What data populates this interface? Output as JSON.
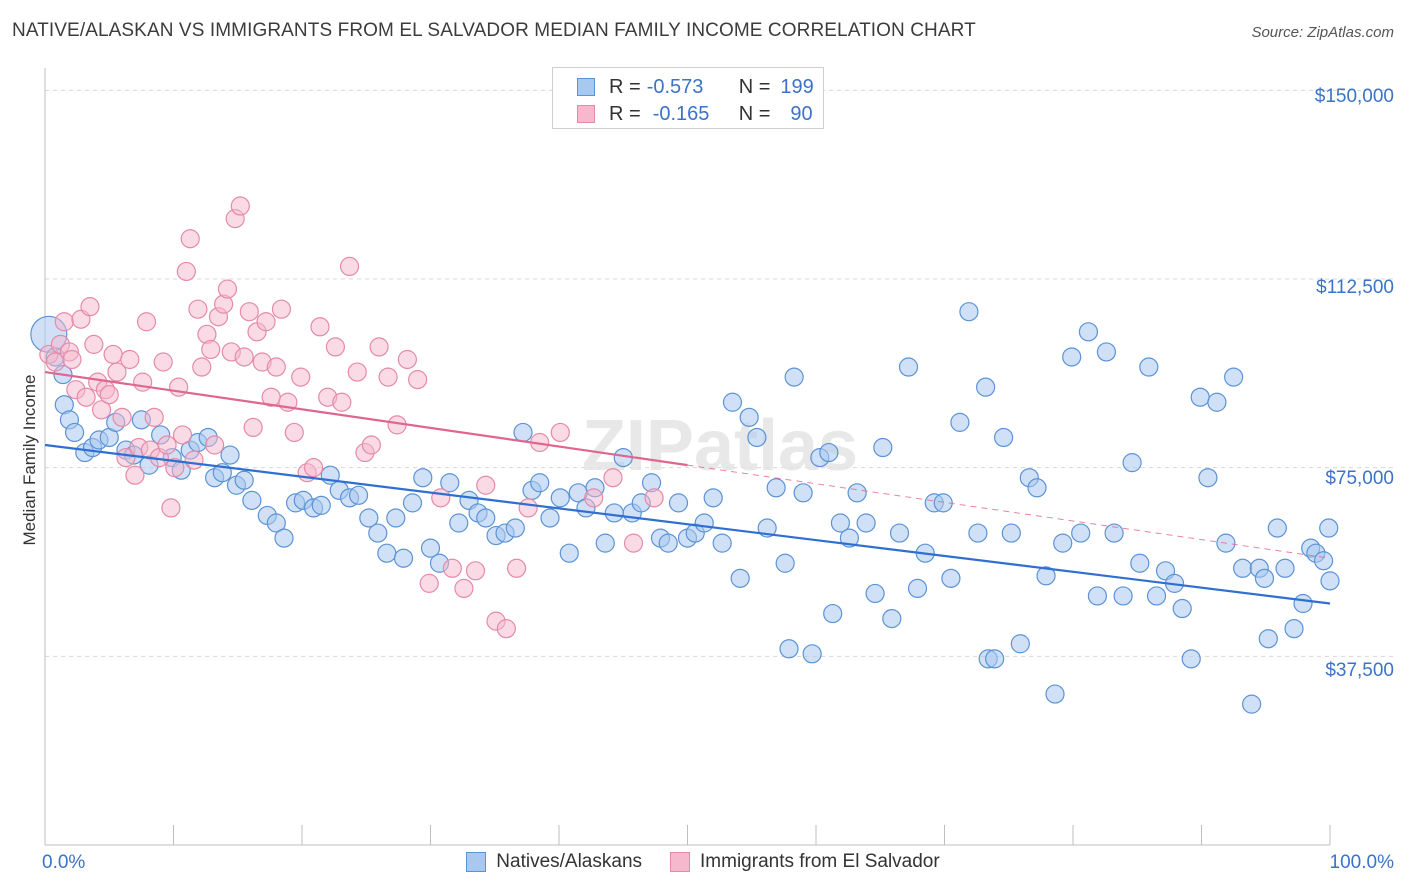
{
  "title": "NATIVE/ALASKAN VS IMMIGRANTS FROM EL SALVADOR MEDIAN FAMILY INCOME CORRELATION CHART",
  "source": "Source: ZipAtlas.com",
  "watermark": "ZIPatlas",
  "legend_top": {
    "row1": {
      "r_label": "R =",
      "r_value": "-0.573",
      "n_label": "N =",
      "n_value": "199"
    },
    "row2": {
      "r_label": "R =",
      "r_value": "-0.165",
      "n_label": "N =",
      "n_value": "90"
    }
  },
  "legend_bottom": {
    "series1": "Natives/Alaskans",
    "series2": "Immigrants from El Salvador"
  },
  "colors": {
    "blue_fill": "#a9c8f0",
    "blue_stroke": "#5b93d6",
    "blue_line": "#2e6fd1",
    "pink_fill": "#f6b8cc",
    "pink_stroke": "#e58aa8",
    "pink_line": "#e0658f",
    "tick_text": "#3a73c8",
    "grid": "#d8d8d8"
  },
  "chart_data": {
    "type": "scatter",
    "title": "NATIVE/ALASKAN VS IMMIGRANTS FROM EL SALVADOR MEDIAN FAMILY INCOME CORRELATION CHART",
    "xlabel": "",
    "ylabel": "Median Family Income",
    "xlim": [
      0,
      100
    ],
    "ylim": [
      0,
      160000
    ],
    "x_tick_labels": [
      "0.0%",
      "100.0%"
    ],
    "y_ticks": [
      37500,
      75000,
      112500,
      150000
    ],
    "y_tick_labels": [
      "$37,500",
      "$75,000",
      "$112,500",
      "$150,000"
    ],
    "series": [
      {
        "name": "Natives/Alaskans",
        "R": -0.573,
        "N": 199,
        "trend": {
          "x": [
            0,
            100
          ],
          "y": [
            79500,
            48000
          ]
        },
        "points": [
          [
            0.3,
            101500
          ],
          [
            0.8,
            97000
          ],
          [
            1.4,
            93500
          ],
          [
            1.5,
            87500
          ],
          [
            1.9,
            84500
          ],
          [
            2.3,
            82000
          ],
          [
            3.1,
            78000
          ],
          [
            3.7,
            79000
          ],
          [
            4.2,
            80500
          ],
          [
            5.0,
            81000
          ],
          [
            5.5,
            84000
          ],
          [
            6.3,
            78500
          ],
          [
            6.9,
            77500
          ],
          [
            7.5,
            84500
          ],
          [
            8.1,
            75500
          ],
          [
            9.0,
            81500
          ],
          [
            9.9,
            77000
          ],
          [
            10.6,
            74500
          ],
          [
            11.3,
            78500
          ],
          [
            11.9,
            80000
          ],
          [
            12.7,
            81000
          ],
          [
            13.2,
            73000
          ],
          [
            13.8,
            74000
          ],
          [
            14.4,
            77500
          ],
          [
            14.9,
            71500
          ],
          [
            15.5,
            72500
          ],
          [
            16.1,
            68500
          ],
          [
            17.3,
            65500
          ],
          [
            18.0,
            64000
          ],
          [
            18.6,
            61000
          ],
          [
            19.5,
            68000
          ],
          [
            20.1,
            68500
          ],
          [
            20.9,
            67000
          ],
          [
            21.5,
            67500
          ],
          [
            22.2,
            73500
          ],
          [
            22.9,
            70500
          ],
          [
            23.7,
            69000
          ],
          [
            24.4,
            69500
          ],
          [
            25.2,
            65000
          ],
          [
            25.9,
            62000
          ],
          [
            26.6,
            58000
          ],
          [
            27.3,
            65000
          ],
          [
            27.9,
            57000
          ],
          [
            28.6,
            68000
          ],
          [
            29.4,
            73000
          ],
          [
            30.0,
            59000
          ],
          [
            30.7,
            56000
          ],
          [
            31.5,
            72000
          ],
          [
            32.2,
            64000
          ],
          [
            33.0,
            68500
          ],
          [
            33.7,
            66000
          ],
          [
            34.3,
            65000
          ],
          [
            35.1,
            61500
          ],
          [
            35.8,
            62000
          ],
          [
            36.6,
            63000
          ],
          [
            37.2,
            82000
          ],
          [
            37.9,
            70500
          ],
          [
            38.5,
            72000
          ],
          [
            39.3,
            65000
          ],
          [
            40.1,
            69000
          ],
          [
            40.8,
            58000
          ],
          [
            41.5,
            70000
          ],
          [
            42.1,
            67000
          ],
          [
            42.8,
            71000
          ],
          [
            43.6,
            60000
          ],
          [
            44.3,
            66000
          ],
          [
            45.0,
            77000
          ],
          [
            45.7,
            66000
          ],
          [
            46.4,
            68000
          ],
          [
            47.2,
            72000
          ],
          [
            47.9,
            61000
          ],
          [
            48.5,
            60000
          ],
          [
            49.3,
            68000
          ],
          [
            50.0,
            61000
          ],
          [
            50.6,
            62000
          ],
          [
            51.3,
            64000
          ],
          [
            52.0,
            69000
          ],
          [
            52.7,
            60000
          ],
          [
            53.5,
            88000
          ],
          [
            54.1,
            53000
          ],
          [
            54.8,
            85000
          ],
          [
            55.4,
            81000
          ],
          [
            56.2,
            63000
          ],
          [
            56.9,
            71000
          ],
          [
            57.6,
            56000
          ],
          [
            57.9,
            39000
          ],
          [
            58.3,
            93000
          ],
          [
            59.0,
            70000
          ],
          [
            59.7,
            38000
          ],
          [
            60.3,
            77000
          ],
          [
            61.0,
            78000
          ],
          [
            61.3,
            46000
          ],
          [
            61.9,
            64000
          ],
          [
            62.6,
            61000
          ],
          [
            63.2,
            70000
          ],
          [
            63.9,
            64000
          ],
          [
            64.6,
            50000
          ],
          [
            65.2,
            79000
          ],
          [
            65.9,
            45000
          ],
          [
            66.5,
            62000
          ],
          [
            67.2,
            95000
          ],
          [
            67.9,
            51000
          ],
          [
            68.5,
            58000
          ],
          [
            69.2,
            68000
          ],
          [
            69.9,
            68000
          ],
          [
            70.5,
            53000
          ],
          [
            71.2,
            84000
          ],
          [
            71.9,
            106000
          ],
          [
            72.6,
            62000
          ],
          [
            73.2,
            91000
          ],
          [
            73.4,
            37000
          ],
          [
            73.9,
            37000
          ],
          [
            74.6,
            81000
          ],
          [
            75.2,
            62000
          ],
          [
            75.9,
            40000
          ],
          [
            76.6,
            73000
          ],
          [
            77.2,
            71000
          ],
          [
            77.9,
            53500
          ],
          [
            78.6,
            30000
          ],
          [
            79.2,
            60000
          ],
          [
            79.9,
            97000
          ],
          [
            80.6,
            62000
          ],
          [
            81.2,
            102000
          ],
          [
            81.9,
            49500
          ],
          [
            82.6,
            98000
          ],
          [
            83.2,
            62000
          ],
          [
            83.9,
            49500
          ],
          [
            84.6,
            76000
          ],
          [
            85.2,
            56000
          ],
          [
            85.9,
            95000
          ],
          [
            86.5,
            49500
          ],
          [
            87.2,
            54500
          ],
          [
            87.9,
            52000
          ],
          [
            88.5,
            47000
          ],
          [
            89.2,
            37000
          ],
          [
            89.9,
            89000
          ],
          [
            90.5,
            73000
          ],
          [
            91.2,
            88000
          ],
          [
            91.9,
            60000
          ],
          [
            92.5,
            93000
          ],
          [
            93.2,
            55000
          ],
          [
            93.9,
            28000
          ],
          [
            94.5,
            55000
          ],
          [
            94.9,
            53000
          ],
          [
            95.2,
            41000
          ],
          [
            95.9,
            63000
          ],
          [
            96.5,
            55000
          ],
          [
            97.2,
            43000
          ],
          [
            97.9,
            48000
          ],
          [
            98.5,
            59000
          ],
          [
            98.9,
            58000
          ],
          [
            99.5,
            56500
          ],
          [
            99.9,
            63000
          ],
          [
            100.0,
            52500
          ]
        ]
      },
      {
        "name": "Immigrants from El Salvador",
        "R": -0.165,
        "N": 90,
        "trend": {
          "x": [
            0,
            50
          ],
          "y": [
            94000,
            75500
          ]
        },
        "trend_dashed": {
          "x": [
            50,
            100
          ],
          "y": [
            75500,
            57000
          ]
        },
        "points": [
          [
            0.3,
            97500
          ],
          [
            0.8,
            96000
          ],
          [
            1.2,
            99500
          ],
          [
            1.5,
            104000
          ],
          [
            1.9,
            98000
          ],
          [
            2.1,
            96500
          ],
          [
            2.4,
            90500
          ],
          [
            2.8,
            104500
          ],
          [
            3.2,
            89000
          ],
          [
            3.5,
            107000
          ],
          [
            3.8,
            99500
          ],
          [
            4.1,
            92000
          ],
          [
            4.4,
            86500
          ],
          [
            4.7,
            90500
          ],
          [
            5.0,
            89500
          ],
          [
            5.3,
            97500
          ],
          [
            5.6,
            94000
          ],
          [
            6.0,
            85000
          ],
          [
            6.3,
            77000
          ],
          [
            6.6,
            96500
          ],
          [
            7.0,
            73500
          ],
          [
            7.3,
            79000
          ],
          [
            7.6,
            92000
          ],
          [
            7.9,
            104000
          ],
          [
            8.2,
            78500
          ],
          [
            8.5,
            85000
          ],
          [
            8.9,
            77000
          ],
          [
            9.2,
            96000
          ],
          [
            9.5,
            79500
          ],
          [
            9.8,
            67000
          ],
          [
            10.1,
            75000
          ],
          [
            10.4,
            91000
          ],
          [
            10.7,
            81500
          ],
          [
            11.0,
            114000
          ],
          [
            11.3,
            120500
          ],
          [
            11.6,
            76500
          ],
          [
            11.9,
            106500
          ],
          [
            12.2,
            95000
          ],
          [
            12.6,
            101500
          ],
          [
            12.9,
            98500
          ],
          [
            13.2,
            79500
          ],
          [
            13.5,
            105000
          ],
          [
            13.9,
            107500
          ],
          [
            14.2,
            110500
          ],
          [
            14.5,
            98000
          ],
          [
            14.8,
            124500
          ],
          [
            15.2,
            127000
          ],
          [
            15.5,
            97000
          ],
          [
            15.9,
            106000
          ],
          [
            16.2,
            83000
          ],
          [
            16.5,
            102000
          ],
          [
            16.9,
            96000
          ],
          [
            17.2,
            104000
          ],
          [
            17.6,
            89000
          ],
          [
            18.0,
            95000
          ],
          [
            18.4,
            106500
          ],
          [
            18.9,
            88000
          ],
          [
            19.4,
            82000
          ],
          [
            19.9,
            93000
          ],
          [
            20.4,
            74000
          ],
          [
            20.9,
            75000
          ],
          [
            21.4,
            103000
          ],
          [
            22.0,
            89000
          ],
          [
            22.6,
            99000
          ],
          [
            23.1,
            88000
          ],
          [
            23.7,
            115000
          ],
          [
            24.3,
            94000
          ],
          [
            24.9,
            78000
          ],
          [
            25.4,
            79500
          ],
          [
            26.0,
            99000
          ],
          [
            26.7,
            93000
          ],
          [
            27.4,
            83500
          ],
          [
            28.2,
            96500
          ],
          [
            29.0,
            92500
          ],
          [
            29.9,
            52000
          ],
          [
            30.8,
            69000
          ],
          [
            31.7,
            55000
          ],
          [
            32.6,
            51000
          ],
          [
            33.5,
            54500
          ],
          [
            34.3,
            71500
          ],
          [
            35.1,
            44500
          ],
          [
            35.9,
            43000
          ],
          [
            36.7,
            55000
          ],
          [
            37.6,
            67000
          ],
          [
            38.5,
            80000
          ],
          [
            40.1,
            82000
          ],
          [
            42.7,
            69000
          ],
          [
            44.2,
            73000
          ],
          [
            45.8,
            60000
          ],
          [
            47.4,
            69000
          ]
        ]
      }
    ]
  }
}
